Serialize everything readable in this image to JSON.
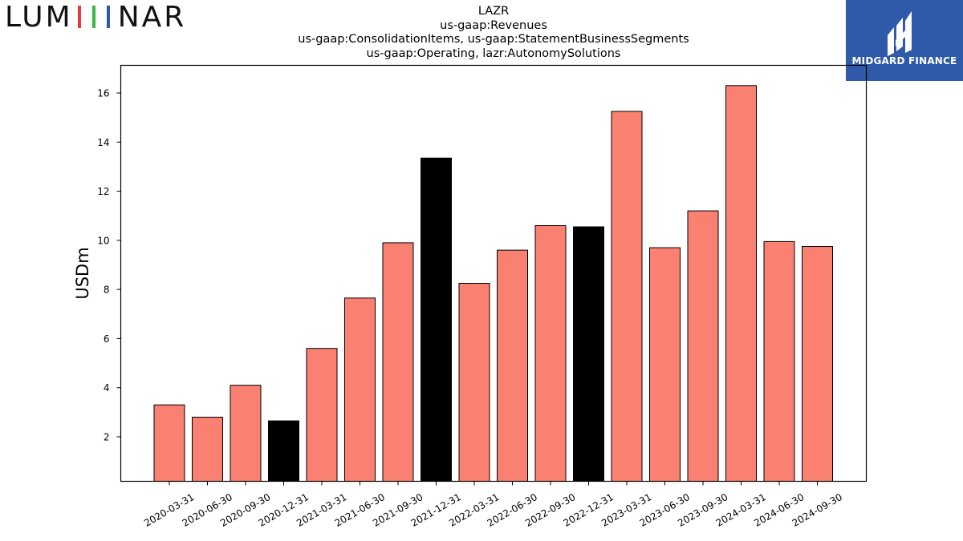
{
  "logo": {
    "text_pre": "LUM",
    "text_post": "NAR",
    "bar_colors": [
      "#e8373e",
      "#3cb44b",
      "#2f5aa9"
    ]
  },
  "brand": {
    "name": "MIDGARD FINANCE",
    "bg": "#2f5aa9"
  },
  "chart_data": {
    "type": "bar",
    "title_lines": [
      "LAZR",
      "us-gaap:Revenues",
      "us-gaap:ConsolidationItems, us-gaap:StatementBusinessSegments",
      "us-gaap:Operating, lazr:AutonomySolutions"
    ],
    "ylabel": "USDm",
    "xlabel": "",
    "categories": [
      "2020-03-31",
      "2020-06-30",
      "2020-09-30",
      "2020-12-31",
      "2021-03-31",
      "2021-06-30",
      "2021-09-30",
      "2021-12-31",
      "2022-03-31",
      "2022-06-30",
      "2022-09-30",
      "2022-12-31",
      "2023-03-31",
      "2023-06-30",
      "2023-09-30",
      "2024-03-31",
      "2024-06-30",
      "2024-09-30"
    ],
    "values": [
      3.3,
      2.8,
      4.1,
      2.65,
      5.6,
      7.65,
      9.9,
      13.35,
      8.25,
      9.6,
      10.6,
      10.55,
      15.25,
      9.7,
      11.2,
      16.3,
      9.95,
      9.75
    ],
    "highlight": [
      false,
      false,
      false,
      true,
      false,
      false,
      false,
      true,
      false,
      false,
      false,
      true,
      false,
      false,
      false,
      false,
      false,
      false
    ],
    "colors": {
      "default": "#fa8072",
      "highlight": "#000000",
      "edge": "#000000"
    },
    "yticks": [
      2,
      4,
      6,
      8,
      10,
      12,
      14,
      16
    ],
    "ylim": [
      0.2,
      17.1
    ],
    "grid": false,
    "legend": "none"
  }
}
